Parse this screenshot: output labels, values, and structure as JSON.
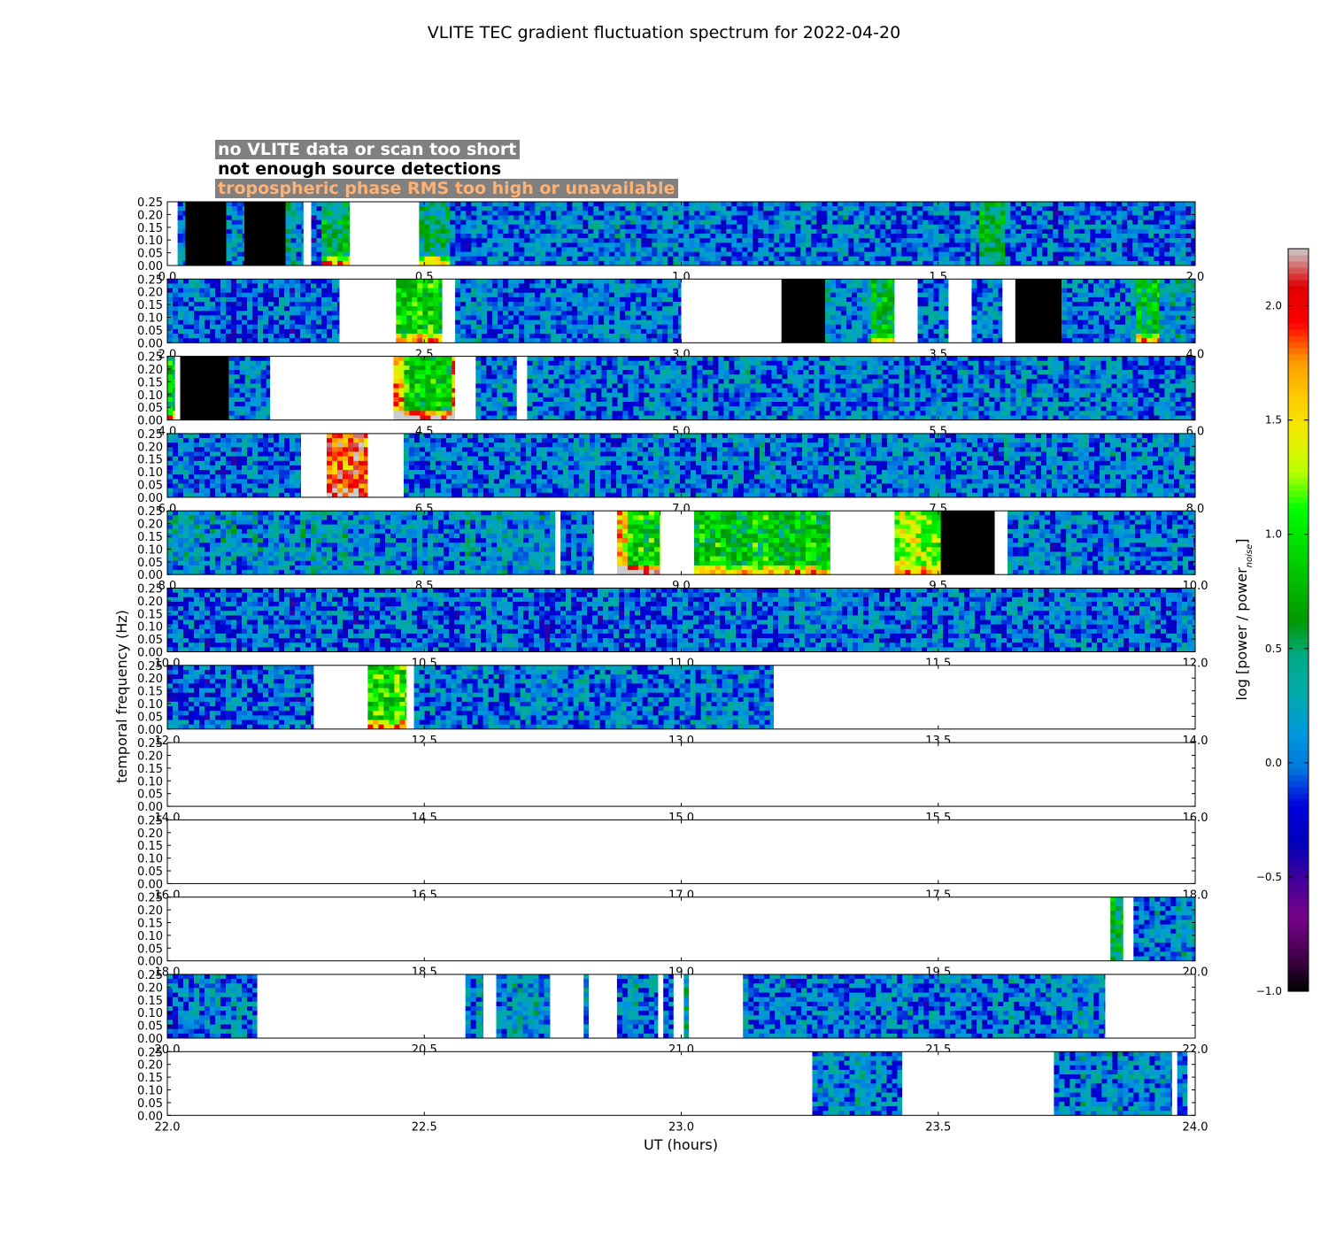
{
  "chart_data": {
    "type": "heatmap",
    "title": "VLITE TEC gradient fluctuation spectrum for 2022-04-20",
    "xlabel": "UT (hours)",
    "ylabel": "temporal frequency (Hz)",
    "ylim": [
      0,
      0.25
    ],
    "yticks": [
      "0.00",
      "0.05",
      "0.10",
      "0.15",
      "0.20",
      "0.25"
    ],
    "colorbar": {
      "label": "log [power / power",
      "label_subscript": "noise",
      "label_close": "]",
      "range": [
        -1.0,
        2.25
      ],
      "ticks": [
        "−1.0",
        "−0.5",
        "0.0",
        "0.5",
        "1.0",
        "1.5",
        "2.0"
      ],
      "colormap": "nipy_spectral",
      "under": "#ffffff",
      "over": "#cccccc"
    },
    "legend": [
      {
        "label": "no VLITE data or scan too short",
        "text_color": "#ffffff",
        "box_color": "#808080"
      },
      {
        "label": "not enough source detections",
        "text_color": "#000000",
        "box_color": "#ffffff"
      },
      {
        "label": "tropospheric phase RMS too high or unavailable",
        "text_color": "#ffb273",
        "box_color": "#808080"
      }
    ],
    "status_colors": {
      "no_detections": "#000000",
      "no_data": "#ffffff"
    },
    "panels": [
      {
        "range": [
          0,
          2
        ],
        "xticks": [
          "0.0",
          "0.5",
          "1.0",
          "1.5",
          "2.0"
        ],
        "segments": [
          {
            "from": 0.02,
            "to": 0.035,
            "state": "data",
            "level": 0.1
          },
          {
            "from": 0.035,
            "to": 0.115,
            "state": "no_detections"
          },
          {
            "from": 0.115,
            "to": 0.15,
            "state": "data",
            "level": 0.1
          },
          {
            "from": 0.15,
            "to": 0.23,
            "state": "no_detections"
          },
          {
            "from": 0.23,
            "to": 0.265,
            "state": "data",
            "level": 0.2
          },
          {
            "from": 0.265,
            "to": 0.28,
            "state": "no_data"
          },
          {
            "from": 0.28,
            "to": 0.3,
            "state": "data",
            "level": -0.2
          },
          {
            "from": 0.3,
            "to": 0.355,
            "state": "data",
            "level": 0.6,
            "low_boost": 1.1
          },
          {
            "from": 0.355,
            "to": 0.49,
            "state": "no_data"
          },
          {
            "from": 0.49,
            "to": 0.55,
            "state": "data",
            "level": 0.4,
            "low_boost": 1.3
          },
          {
            "from": 0.55,
            "to": 1.58,
            "state": "data",
            "level": 0.05
          },
          {
            "from": 1.58,
            "to": 1.63,
            "state": "data",
            "level": 0.5
          },
          {
            "from": 1.63,
            "to": 2.0,
            "state": "data",
            "level": 0.0
          }
        ]
      },
      {
        "range": [
          2,
          4
        ],
        "xticks": [
          "2.0",
          "2.5",
          "3.0",
          "3.5",
          "4.0"
        ],
        "segments": [
          {
            "from": 2.0,
            "to": 2.335,
            "state": "data",
            "level": 0.0
          },
          {
            "from": 2.335,
            "to": 2.445,
            "state": "no_data"
          },
          {
            "from": 2.445,
            "to": 2.535,
            "state": "data",
            "level": 0.9,
            "low_boost": 0.8
          },
          {
            "from": 2.535,
            "to": 2.56,
            "state": "no_data"
          },
          {
            "from": 2.56,
            "to": 3.0,
            "state": "data",
            "level": 0.05
          },
          {
            "from": 3.0,
            "to": 3.195,
            "state": "no_data"
          },
          {
            "from": 3.195,
            "to": 3.28,
            "state": "no_detections"
          },
          {
            "from": 3.28,
            "to": 3.37,
            "state": "data",
            "level": 0.1
          },
          {
            "from": 3.37,
            "to": 3.415,
            "state": "data",
            "level": 0.7,
            "low_boost": 0.9
          },
          {
            "from": 3.415,
            "to": 3.46,
            "state": "no_data"
          },
          {
            "from": 3.46,
            "to": 3.52,
            "state": "data",
            "level": 0.05
          },
          {
            "from": 3.52,
            "to": 3.565,
            "state": "no_data"
          },
          {
            "from": 3.565,
            "to": 3.625,
            "state": "data",
            "level": 0.0
          },
          {
            "from": 3.625,
            "to": 3.65,
            "state": "no_data"
          },
          {
            "from": 3.65,
            "to": 3.74,
            "state": "no_detections"
          },
          {
            "from": 3.74,
            "to": 3.885,
            "state": "data",
            "level": 0.05
          },
          {
            "from": 3.885,
            "to": 3.93,
            "state": "data",
            "level": 0.8,
            "low_boost": 1.0
          },
          {
            "from": 3.93,
            "to": 4.0,
            "state": "data",
            "level": 0.2
          }
        ]
      },
      {
        "range": [
          4,
          6
        ],
        "xticks": [
          "4.0",
          "4.5",
          "5.0",
          "5.5",
          "6.0"
        ],
        "segments": [
          {
            "from": 4.0,
            "to": 4.015,
            "state": "data",
            "level": 0.8,
            "low_boost": 1.0
          },
          {
            "from": 4.015,
            "to": 4.025,
            "state": "no_data"
          },
          {
            "from": 4.025,
            "to": 4.12,
            "state": "no_detections"
          },
          {
            "from": 4.12,
            "to": 4.2,
            "state": "data",
            "level": 0.1
          },
          {
            "from": 4.2,
            "to": 4.44,
            "state": "no_data"
          },
          {
            "from": 4.44,
            "to": 4.56,
            "state": "data",
            "level": 0.9,
            "low_boost": 1.4,
            "edge": true
          },
          {
            "from": 4.56,
            "to": 4.6,
            "state": "no_data"
          },
          {
            "from": 4.6,
            "to": 4.68,
            "state": "data",
            "level": 0.05
          },
          {
            "from": 4.68,
            "to": 4.7,
            "state": "no_data"
          },
          {
            "from": 4.7,
            "to": 6.0,
            "state": "data",
            "level": 0.05
          }
        ]
      },
      {
        "range": [
          6,
          8
        ],
        "xticks": [
          "6.0",
          "6.5",
          "7.0",
          "7.5",
          "8.0"
        ],
        "segments": [
          {
            "from": 6.0,
            "to": 6.26,
            "state": "data",
            "level": 0.0
          },
          {
            "from": 6.26,
            "to": 6.31,
            "state": "no_data"
          },
          {
            "from": 6.31,
            "to": 6.39,
            "state": "data",
            "level": 1.9,
            "low_boost": 0.4
          },
          {
            "from": 6.39,
            "to": 6.46,
            "state": "no_data"
          },
          {
            "from": 6.46,
            "to": 8.0,
            "state": "data",
            "level": 0.05
          }
        ]
      },
      {
        "range": [
          8,
          10
        ],
        "xticks": [
          "8.0",
          "8.5",
          "9.0",
          "9.5",
          "10.0"
        ],
        "segments": [
          {
            "from": 8.0,
            "to": 8.755,
            "state": "data",
            "level": 0.15
          },
          {
            "from": 8.755,
            "to": 8.765,
            "state": "no_data"
          },
          {
            "from": 8.765,
            "to": 8.83,
            "state": "data",
            "level": 0.05
          },
          {
            "from": 8.83,
            "to": 8.875,
            "state": "no_data"
          },
          {
            "from": 8.875,
            "to": 8.96,
            "state": "data",
            "level": 0.9,
            "low_boost": 1.4,
            "edge": true
          },
          {
            "from": 8.96,
            "to": 9.025,
            "state": "no_data"
          },
          {
            "from": 9.025,
            "to": 9.29,
            "state": "data",
            "level": 0.8,
            "low_boost": 0.9
          },
          {
            "from": 9.29,
            "to": 9.415,
            "state": "no_data"
          },
          {
            "from": 9.415,
            "to": 9.505,
            "state": "data",
            "level": 1.2,
            "low_boost": 0.5
          },
          {
            "from": 9.505,
            "to": 9.61,
            "state": "no_detections"
          },
          {
            "from": 9.61,
            "to": 9.635,
            "state": "no_data"
          },
          {
            "from": 9.635,
            "to": 10.0,
            "state": "data",
            "level": 0.05
          }
        ]
      },
      {
        "range": [
          10,
          12
        ],
        "xticks": [
          "10.0",
          "10.5",
          "11.0",
          "11.5",
          "12.0"
        ],
        "segments": [
          {
            "from": 10.0,
            "to": 12.0,
            "state": "data",
            "level": 0.0
          }
        ]
      },
      {
        "range": [
          12,
          14
        ],
        "xticks": [
          "12.0",
          "12.5",
          "13.0",
          "13.5",
          "14.0"
        ],
        "segments": [
          {
            "from": 12.0,
            "to": 12.285,
            "state": "data",
            "level": 0.0
          },
          {
            "from": 12.285,
            "to": 12.39,
            "state": "no_data"
          },
          {
            "from": 12.39,
            "to": 12.465,
            "state": "data",
            "level": 1.0,
            "low_boost": 0.8
          },
          {
            "from": 12.465,
            "to": 12.48,
            "state": "no_data"
          },
          {
            "from": 12.48,
            "to": 13.18,
            "state": "data",
            "level": 0.05
          },
          {
            "from": 13.18,
            "to": 14.0,
            "state": "no_data"
          }
        ]
      },
      {
        "range": [
          14,
          16
        ],
        "xticks": [
          "14.0",
          "14.5",
          "15.0",
          "15.5",
          "16.0"
        ],
        "segments": [
          {
            "from": 14.0,
            "to": 16.0,
            "state": "no_data"
          }
        ]
      },
      {
        "range": [
          16,
          18
        ],
        "xticks": [
          "16.0",
          "16.5",
          "17.0",
          "17.5",
          "18.0"
        ],
        "segments": [
          {
            "from": 16.0,
            "to": 18.0,
            "state": "no_data"
          }
        ]
      },
      {
        "range": [
          18,
          20
        ],
        "xticks": [
          "18.0",
          "18.5",
          "19.0",
          "19.5",
          "20.0"
        ],
        "segments": [
          {
            "from": 18.0,
            "to": 19.835,
            "state": "no_data"
          },
          {
            "from": 19.835,
            "to": 19.86,
            "state": "data",
            "level": 0.6
          },
          {
            "from": 19.86,
            "to": 19.88,
            "state": "no_data"
          },
          {
            "from": 19.88,
            "to": 20.0,
            "state": "data",
            "level": 0.1
          }
        ]
      },
      {
        "range": [
          20,
          22
        ],
        "xticks": [
          "20.0",
          "20.5",
          "21.0",
          "21.5",
          "22.0"
        ],
        "segments": [
          {
            "from": 20.0,
            "to": 20.175,
            "state": "data",
            "level": 0.05
          },
          {
            "from": 20.175,
            "to": 20.58,
            "state": "no_data"
          },
          {
            "from": 20.58,
            "to": 20.615,
            "state": "data",
            "level": 0.1
          },
          {
            "from": 20.615,
            "to": 20.64,
            "state": "no_data"
          },
          {
            "from": 20.64,
            "to": 20.745,
            "state": "data",
            "level": 0.15
          },
          {
            "from": 20.745,
            "to": 20.81,
            "state": "no_data"
          },
          {
            "from": 20.81,
            "to": 20.82,
            "state": "data",
            "level": 0.1
          },
          {
            "from": 20.82,
            "to": 20.875,
            "state": "no_data"
          },
          {
            "from": 20.875,
            "to": 20.955,
            "state": "data",
            "level": 0.1
          },
          {
            "from": 20.955,
            "to": 20.965,
            "state": "no_data"
          },
          {
            "from": 20.965,
            "to": 20.985,
            "state": "data",
            "level": 0.0
          },
          {
            "from": 20.985,
            "to": 21.005,
            "state": "no_data"
          },
          {
            "from": 21.005,
            "to": 21.015,
            "state": "data",
            "level": 0.3
          },
          {
            "from": 21.015,
            "to": 21.12,
            "state": "no_data"
          },
          {
            "from": 21.12,
            "to": 21.825,
            "state": "data",
            "level": 0.05
          },
          {
            "from": 21.825,
            "to": 22.0,
            "state": "no_data"
          }
        ]
      },
      {
        "range": [
          22,
          24
        ],
        "xticks": [
          "22.0",
          "22.5",
          "23.0",
          "23.5",
          "24.0"
        ],
        "segments": [
          {
            "from": 22.0,
            "to": 23.255,
            "state": "no_data"
          },
          {
            "from": 23.255,
            "to": 23.43,
            "state": "data",
            "level": 0.1
          },
          {
            "from": 23.43,
            "to": 23.725,
            "state": "no_data"
          },
          {
            "from": 23.725,
            "to": 23.955,
            "state": "data",
            "level": 0.1
          },
          {
            "from": 23.955,
            "to": 23.965,
            "state": "no_data"
          },
          {
            "from": 23.965,
            "to": 23.985,
            "state": "data",
            "level": 0.1
          },
          {
            "from": 23.985,
            "to": 24.0,
            "state": "no_data"
          }
        ]
      }
    ]
  }
}
